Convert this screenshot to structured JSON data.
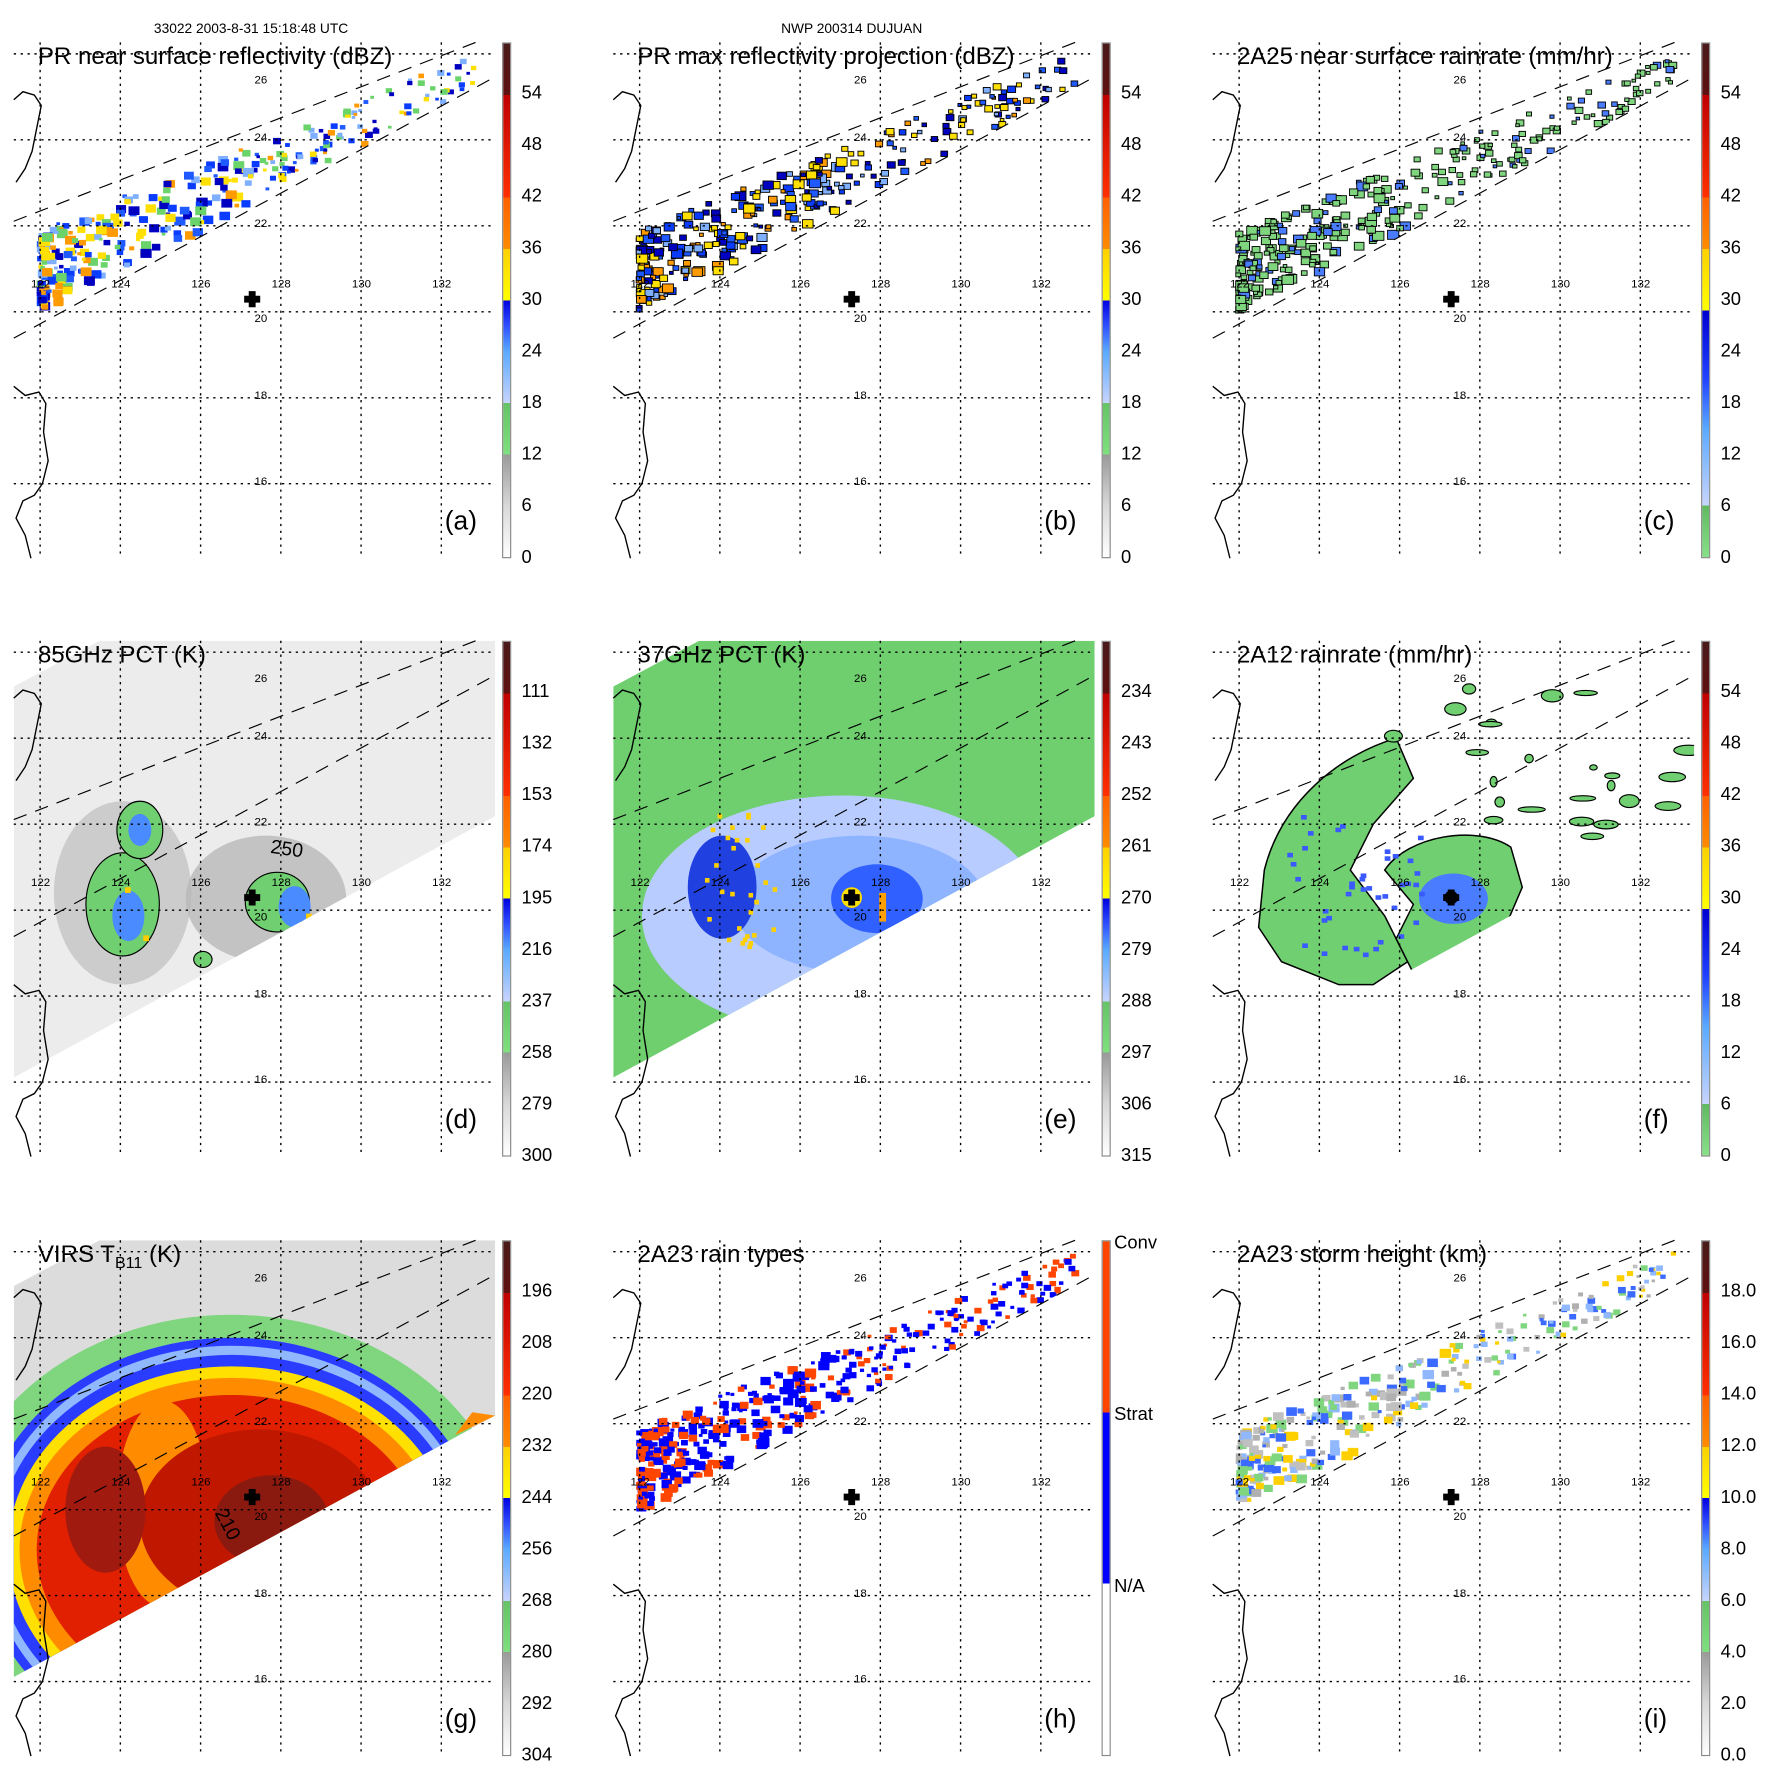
{
  "header": {
    "left": "33022 2003-8-31 15:18:48 UTC",
    "center": "NWP 200314 DUJUAN"
  },
  "ticks": {
    "lon": [
      "122",
      "124",
      "126",
      "128",
      "130",
      "132"
    ],
    "lat": [
      "26",
      "24",
      "22",
      "20",
      "18",
      "16"
    ]
  },
  "panels": [
    {
      "id": "a",
      "title": "PR near surface reflectivity (dBZ)",
      "letter": "(a)",
      "colorbar": [
        "0",
        "6",
        "12",
        "18",
        "24",
        "30",
        "36",
        "42",
        "48",
        "54"
      ]
    },
    {
      "id": "b",
      "title": "PR max reflectivity projection (dBZ)",
      "letter": "(b)",
      "colorbar": [
        "0",
        "6",
        "12",
        "18",
        "24",
        "30",
        "36",
        "42",
        "48",
        "54"
      ]
    },
    {
      "id": "c",
      "title": "2A25 near surface rainrate (mm/hr)",
      "letter": "(c)",
      "colorbar": [
        "0",
        "6",
        "12",
        "18",
        "24",
        "30",
        "36",
        "42",
        "48",
        "54"
      ]
    },
    {
      "id": "d",
      "title": "85GHz PCT (K)",
      "letter": "(d)",
      "colorbar": [
        "300",
        "279",
        "258",
        "237",
        "216",
        "195",
        "174",
        "153",
        "132",
        "111"
      ],
      "contour_label": "250"
    },
    {
      "id": "e",
      "title": "37GHz PCT (K)",
      "letter": "(e)",
      "colorbar": [
        "315",
        "306",
        "297",
        "288",
        "279",
        "270",
        "261",
        "252",
        "243",
        "234"
      ]
    },
    {
      "id": "f",
      "title": "2A12 rainrate (mm/hr)",
      "letter": "(f)",
      "colorbar": [
        "0",
        "6",
        "12",
        "18",
        "24",
        "30",
        "36",
        "42",
        "48",
        "54"
      ]
    },
    {
      "id": "g",
      "title": "VIRS T",
      "title_sub": "B11",
      "title_suffix": " (K)",
      "letter": "(g)",
      "colorbar": [
        "304",
        "292",
        "280",
        "268",
        "256",
        "244",
        "232",
        "220",
        "208",
        "196"
      ],
      "contour_label": "210"
    },
    {
      "id": "h",
      "title": "2A23 rain types",
      "letter": "(h)",
      "colorbar": [
        "Conv",
        "Strat",
        "N/A"
      ]
    },
    {
      "id": "i",
      "title": "2A23 storm height (km)",
      "letter": "(i)",
      "colorbar": [
        "0.0",
        "2.0",
        "4.0",
        "6.0",
        "8.0",
        "10.0",
        "12.0",
        "14.0",
        "16.0",
        "18.0"
      ]
    }
  ],
  "colors": {
    "convective": "#ff4500",
    "stratiform": "#0000ff"
  }
}
